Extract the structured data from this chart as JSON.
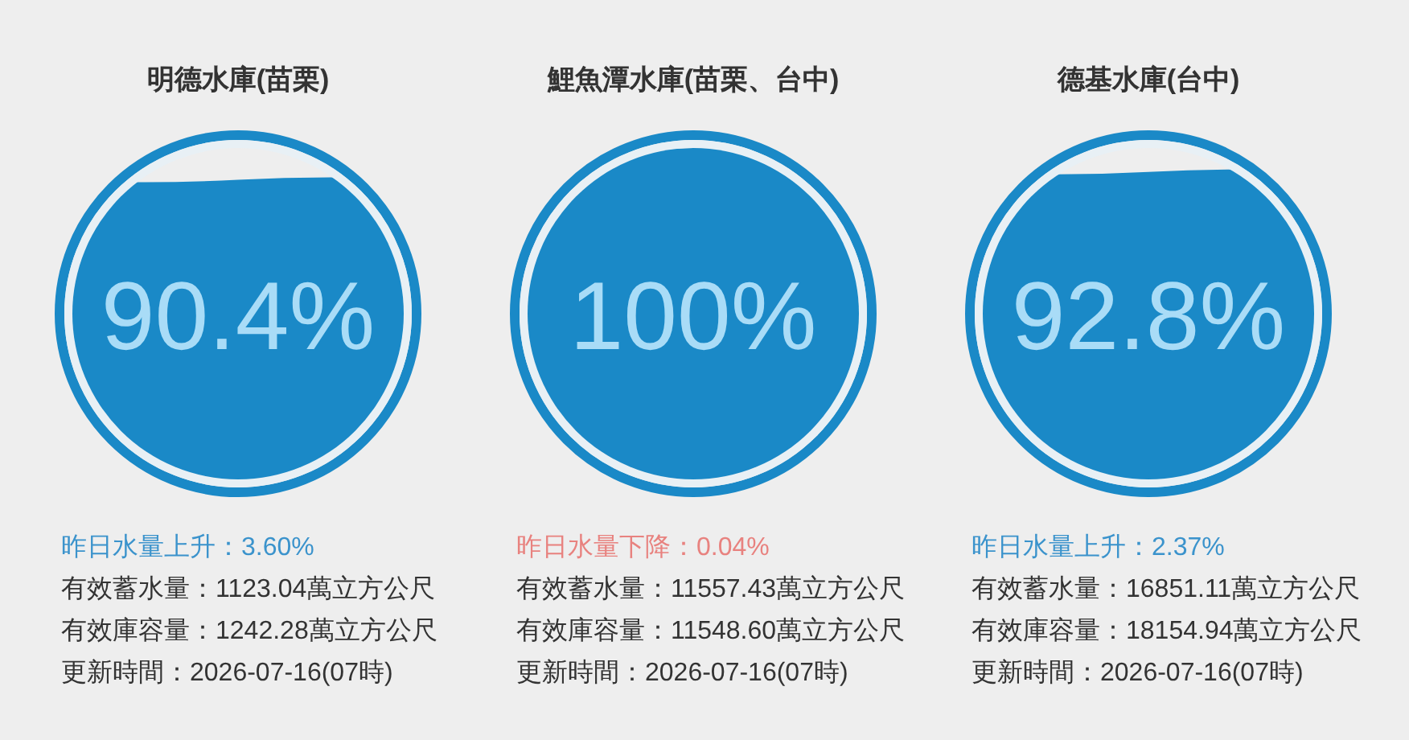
{
  "chart_data": [
    {
      "type": "other",
      "title": "明德水庫(苗栗)",
      "values": [
        90.4
      ],
      "value_labels": [
        "90.4%"
      ],
      "color": "#1a89c7",
      "annotations": [
        "昨日水量上升：3.60%",
        "有效蓄水量：1123.04萬立方公尺",
        "有效庫容量：1242.28萬立方公尺",
        "更新時間：2026-07-16(07時)"
      ]
    },
    {
      "type": "other",
      "title": "鯉魚潭水庫(苗栗、台中)",
      "values": [
        100
      ],
      "value_labels": [
        "100%"
      ],
      "color": "#1a89c7",
      "annotations": [
        "昨日水量下降：0.04%",
        "有效蓄水量：11557.43萬立方公尺",
        "有效庫容量：11548.60萬立方公尺",
        "更新時間：2026-07-16(07時)"
      ]
    },
    {
      "type": "other",
      "title": "德基水庫(台中)",
      "values": [
        92.8
      ],
      "value_labels": [
        "92.8%"
      ],
      "color": "#1a89c7",
      "annotations": [
        "昨日水量上升：2.37%",
        "有效蓄水量：16851.11萬立方公尺",
        "有效庫容量：18154.94萬立方公尺",
        "更新時間：2026-07-16(07時)"
      ]
    }
  ]
}
